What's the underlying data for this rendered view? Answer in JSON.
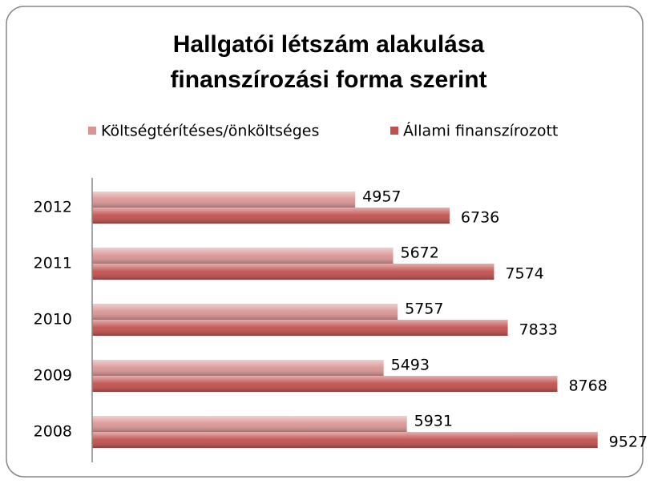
{
  "chart_data": {
    "type": "barh",
    "title": [
      "Hallgatói létszám alakulása",
      "finanszírozási forma szerint"
    ],
    "categories": [
      "2012",
      "2011",
      "2010",
      "2009",
      "2008"
    ],
    "series": [
      {
        "name": "Költségtérítéses/önköltséges",
        "color": "#d99594",
        "values": [
          4957,
          5672,
          5757,
          5493,
          5931
        ]
      },
      {
        "name": "Állami finanszírozott",
        "color": "#c0504d",
        "values": [
          6736,
          7574,
          7833,
          8768,
          9527
        ]
      }
    ],
    "xlim": [
      0,
      10000
    ],
    "legend": "top"
  }
}
